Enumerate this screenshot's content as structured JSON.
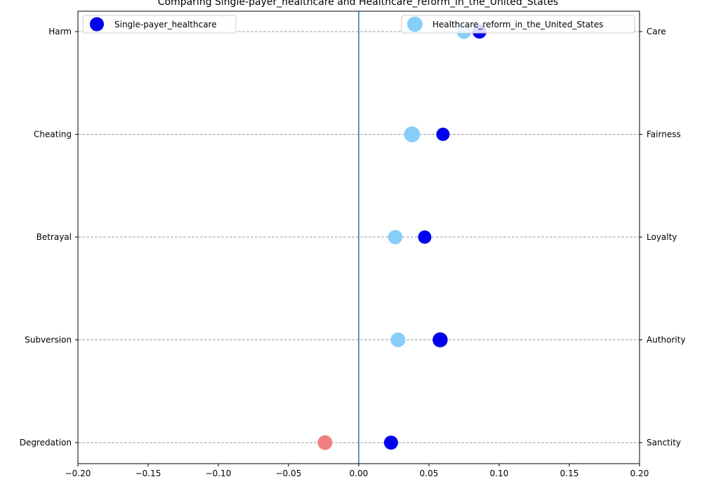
{
  "chart_data": {
    "type": "scatter",
    "title": "Comparing Single-payer_healthcare and Healthcare_reform_in_the_United_States",
    "xlim": [
      -0.2,
      0.2
    ],
    "x_ticks": [
      -0.2,
      -0.15,
      -0.1,
      -0.05,
      0.0,
      0.05,
      0.1,
      0.15,
      0.2
    ],
    "x_tick_labels": [
      "−0.20",
      "−0.15",
      "−0.10",
      "−0.05",
      "0.00",
      "0.05",
      "0.10",
      "0.15",
      "0.20"
    ],
    "left_labels": [
      "Harm",
      "Cheating",
      "Betrayal",
      "Subversion",
      "Degredation"
    ],
    "right_labels": [
      "Care",
      "Fairness",
      "Loyalty",
      "Authority",
      "Sanctity"
    ],
    "grid": "horizontal dashed at each category",
    "zero_line": true,
    "series": [
      {
        "name": "Single-payer_healthcare",
        "color": "#0000ee",
        "legend_position": "upper-left",
        "points": [
          {
            "category": "Care",
            "x": 0.086,
            "size": 1.0
          },
          {
            "category": "Fairness",
            "x": 0.06,
            "size": 0.9
          },
          {
            "category": "Loyalty",
            "x": 0.047,
            "size": 0.9
          },
          {
            "category": "Authority",
            "x": 0.058,
            "size": 1.15
          },
          {
            "category": "Sanctity",
            "x": 0.023,
            "size": 1.0
          }
        ]
      },
      {
        "name": "Healthcare_reform_in_the_United_States",
        "color": "#87cefa",
        "legend_position": "upper-right",
        "points": [
          {
            "category": "Care",
            "x": 0.075,
            "size": 1.1
          },
          {
            "category": "Fairness",
            "x": 0.038,
            "size": 1.3
          },
          {
            "category": "Loyalty",
            "x": 0.026,
            "size": 1.05
          },
          {
            "category": "Authority",
            "x": 0.028,
            "size": 1.1
          },
          {
            "category": "Sanctity",
            "x": -0.024,
            "size": 1.1,
            "color": "#f08080"
          }
        ]
      }
    ]
  }
}
